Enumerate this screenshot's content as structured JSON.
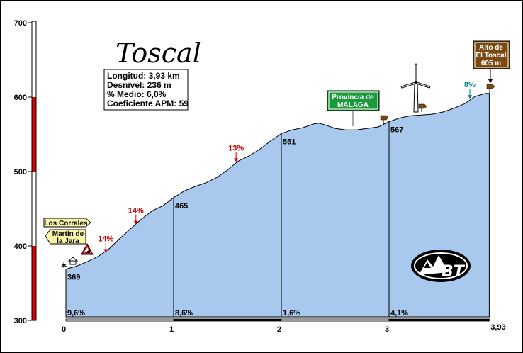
{
  "chart_data": {
    "type": "area",
    "title": "Toscal",
    "info": {
      "longitud": "Longitud: 3,93 km",
      "desnivel": "Desnivel: 236 m",
      "medio": "% Medio: 6,0%",
      "apm": "Coeficiente APM: 59"
    },
    "ylim": [
      300,
      700
    ],
    "yticks": [
      "300",
      "400",
      "500",
      "600",
      "700"
    ],
    "xlim": [
      0,
      3.93
    ],
    "xticks": [
      "0",
      "1",
      "2",
      "3"
    ],
    "x_end_label": "3,93",
    "profile": [
      [
        0,
        369
      ],
      [
        0.1,
        373
      ],
      [
        0.2,
        379
      ],
      [
        0.3,
        386
      ],
      [
        0.4,
        396
      ],
      [
        0.5,
        410
      ],
      [
        0.6,
        423
      ],
      [
        0.7,
        436
      ],
      [
        0.8,
        447
      ],
      [
        0.9,
        454
      ],
      [
        1.0,
        465
      ],
      [
        1.1,
        474
      ],
      [
        1.2,
        480
      ],
      [
        1.3,
        485
      ],
      [
        1.4,
        492
      ],
      [
        1.5,
        502
      ],
      [
        1.6,
        514
      ],
      [
        1.7,
        521
      ],
      [
        1.8,
        530
      ],
      [
        1.9,
        541
      ],
      [
        2.0,
        551
      ],
      [
        2.1,
        556
      ],
      [
        2.2,
        559
      ],
      [
        2.3,
        564
      ],
      [
        2.35,
        565
      ],
      [
        2.4,
        563
      ],
      [
        2.5,
        558
      ],
      [
        2.6,
        556
      ],
      [
        2.7,
        556
      ],
      [
        2.8,
        558
      ],
      [
        2.9,
        560
      ],
      [
        3.0,
        567
      ],
      [
        3.1,
        572
      ],
      [
        3.2,
        575
      ],
      [
        3.3,
        576
      ],
      [
        3.4,
        577
      ],
      [
        3.5,
        580
      ],
      [
        3.6,
        585
      ],
      [
        3.7,
        591
      ],
      [
        3.8,
        601
      ],
      [
        3.9,
        605
      ],
      [
        3.93,
        605
      ]
    ],
    "km_markers": [
      {
        "km": 0,
        "alt": 369,
        "label": "369"
      },
      {
        "km": 1,
        "alt": 465,
        "label": "465"
      },
      {
        "km": 2,
        "alt": 551,
        "label": "551"
      },
      {
        "km": 3,
        "alt": 567,
        "label": "567"
      }
    ],
    "segments": [
      {
        "start_km": 0,
        "label": "9,6%"
      },
      {
        "start_km": 1,
        "label": "8,6%"
      },
      {
        "start_km": 2,
        "label": "1,6%"
      },
      {
        "start_km": 3,
        "label": "4,1%"
      }
    ],
    "gradients": [
      {
        "km": 0.37,
        "alt": 390,
        "label": "14%",
        "color": "red"
      },
      {
        "km": 0.65,
        "alt": 428,
        "label": "14%",
        "color": "red"
      },
      {
        "km": 1.58,
        "alt": 512,
        "label": "13%",
        "color": "red"
      },
      {
        "km": 3.75,
        "alt": 597,
        "label": "8%",
        "color": "teal"
      }
    ],
    "signs": {
      "los_corrales": "Los Corrales",
      "martin_line1": "Martín de",
      "martin_line2": "la Jara",
      "provincia_line1": "Provincia de",
      "provincia_line2": "MÁLAGA",
      "alto_line1": "Alto de",
      "alto_line2": "El Toscal",
      "alto_line3": "605 m"
    },
    "logo_text": "BT",
    "colors": {
      "fill": "#a8c8ee",
      "bar_red": "#dd0000",
      "sign_yellow": "#f8f4a8",
      "sign_green": "#1a9a3a",
      "sign_brown": "#7a4a10"
    }
  }
}
